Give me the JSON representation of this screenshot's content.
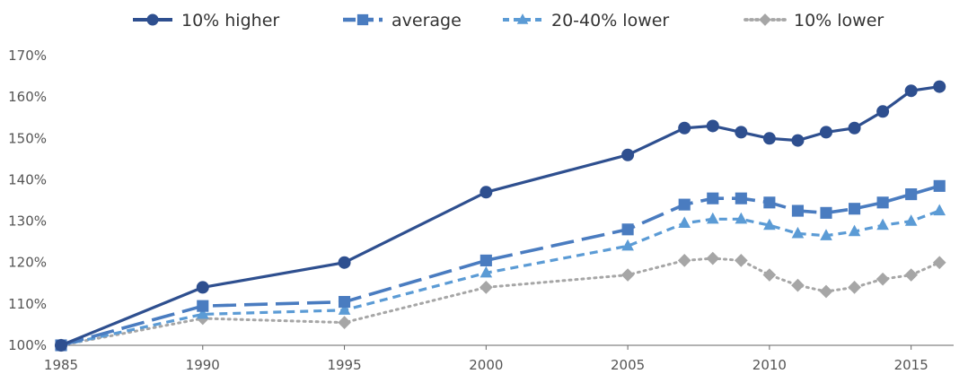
{
  "chart_data": {
    "type": "line",
    "x": [
      1985,
      1990,
      1995,
      2000,
      2005,
      2007,
      2008,
      2009,
      2010,
      2011,
      2012,
      2013,
      2014,
      2015,
      2016
    ],
    "series": [
      {
        "name": "10% higher",
        "color": "#2e4f8f",
        "marker": "circle",
        "dash": "solid",
        "values": [
          100,
          114,
          120,
          137,
          146,
          152.5,
          153,
          151.5,
          150,
          149.5,
          151.5,
          152.5,
          156.5,
          161.5,
          162.5
        ]
      },
      {
        "name": "average",
        "color": "#4a7cc0",
        "marker": "square",
        "dash": "long-dash",
        "values": [
          100,
          109.5,
          110.5,
          120.5,
          128,
          134,
          135.5,
          135.5,
          134.5,
          132.5,
          132,
          133,
          134.5,
          136.5,
          138.5
        ]
      },
      {
        "name": "20-40% lower",
        "color": "#5b9bd5",
        "marker": "triangle",
        "dash": "short-dash",
        "values": [
          100,
          107.5,
          108.5,
          117.5,
          124,
          129.5,
          130.5,
          130.5,
          129,
          127,
          126.5,
          127.5,
          129,
          130,
          132.5
        ]
      },
      {
        "name": "10% lower",
        "color": "#a6a6a6",
        "marker": "diamond",
        "dash": "dotted",
        "values": [
          100,
          106.5,
          105.5,
          114,
          117,
          120.5,
          121,
          120.5,
          117,
          114.5,
          113,
          114,
          116,
          117,
          120
        ]
      }
    ],
    "xticks": [
      1985,
      1990,
      1995,
      2000,
      2005,
      2010,
      2015
    ],
    "xtick_labels": [
      "1985",
      "1990",
      "1995",
      "2000",
      "2005",
      "2010",
      "2015"
    ],
    "yticks": [
      100,
      110,
      120,
      130,
      140,
      150,
      160,
      170
    ],
    "ytick_labels": [
      "100%",
      "110%",
      "120%",
      "130%",
      "140%",
      "150%",
      "160%",
      "170%"
    ],
    "xlim": [
      1985,
      2016.5
    ],
    "ylim": [
      100,
      170
    ],
    "grid": false,
    "legend_position": "top"
  }
}
